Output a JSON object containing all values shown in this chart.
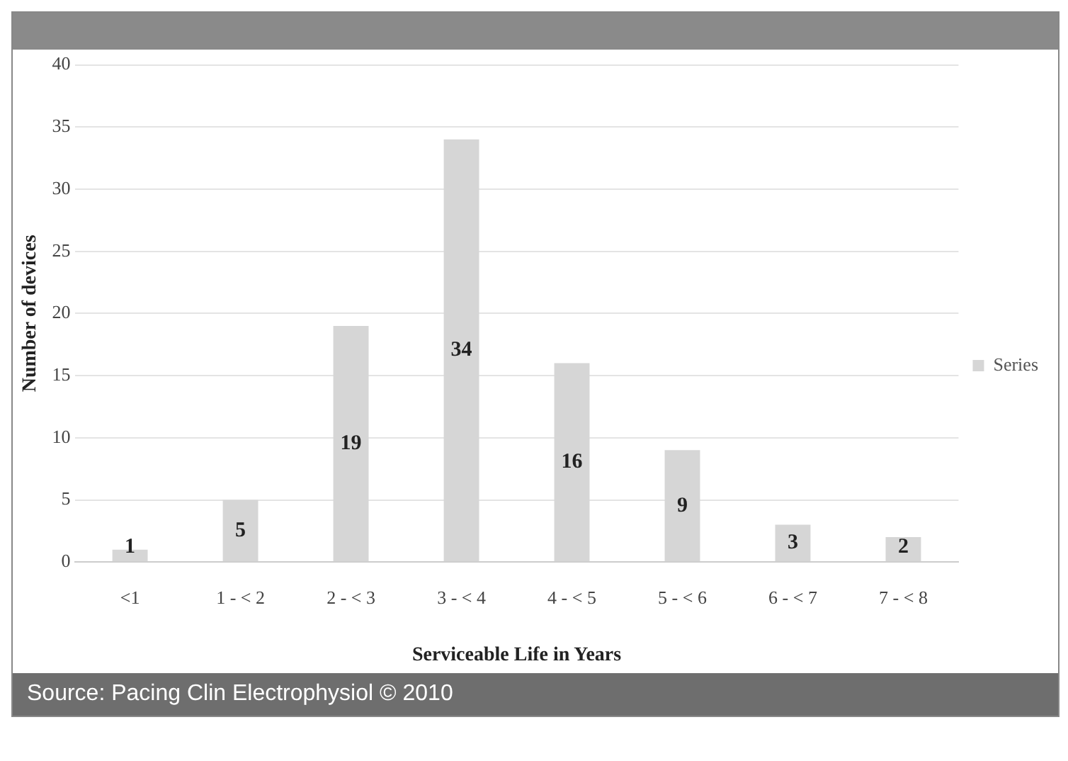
{
  "chart_data": {
    "type": "bar",
    "xlabel": "Serviceable Life in Years",
    "ylabel": "Number of devices",
    "categories": [
      "<1",
      "1 - < 2",
      "2 - < 3",
      "3 - < 4",
      "4 - < 5",
      "5 - < 6",
      "6 - < 7",
      "7 - < 8"
    ],
    "series": [
      {
        "name": "Series",
        "color": "#d6d6d6",
        "values": [
          1,
          5,
          19,
          34,
          16,
          9,
          3,
          2
        ]
      }
    ],
    "ylim": [
      0,
      40
    ],
    "yticks": [
      0,
      5,
      10,
      15,
      20,
      25,
      30,
      35,
      40
    ],
    "grid": "y",
    "legend": "right",
    "data_labels": true,
    "annotations": [
      "Source: Pacing Clin Electrophysiol © 2010"
    ]
  }
}
